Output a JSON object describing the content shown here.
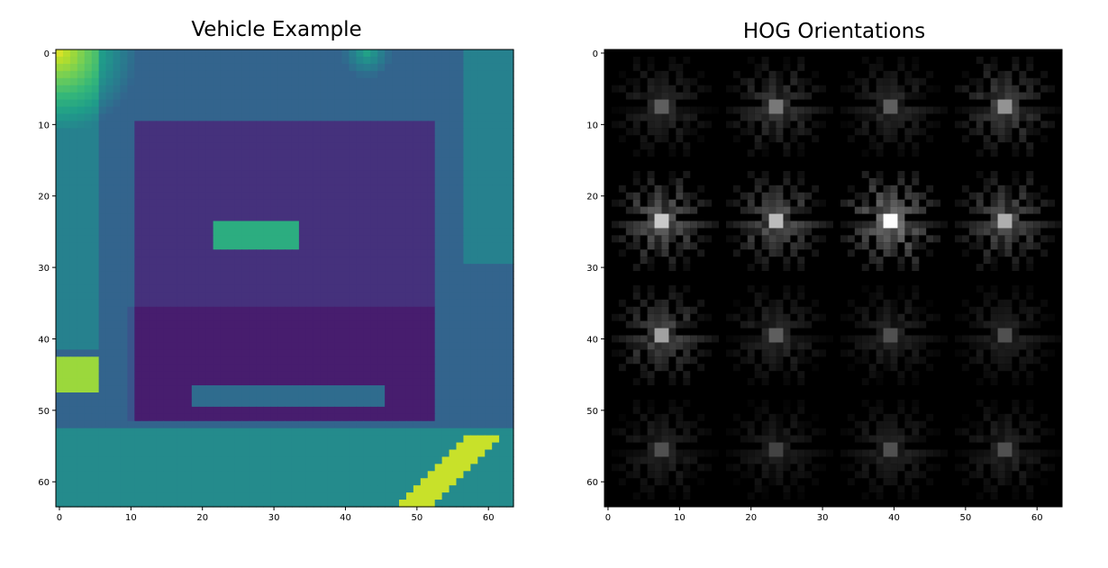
{
  "chart_data": [
    {
      "type": "heatmap",
      "title": "Vehicle Example",
      "colormap": "viridis",
      "xlim": [
        -0.5,
        63.5
      ],
      "ylim": [
        63.5,
        -0.5
      ],
      "xticks": [
        0,
        10,
        20,
        30,
        40,
        50,
        60
      ],
      "yticks": [
        0,
        10,
        20,
        30,
        40,
        50,
        60
      ],
      "xticklabels": [
        "0",
        "10",
        "20",
        "30",
        "40",
        "50",
        "60"
      ],
      "yticklabels": [
        "0",
        "10",
        "20",
        "30",
        "40",
        "50",
        "60"
      ],
      "image_size": [
        64,
        64
      ],
      "xlabel": "",
      "ylabel": ""
    },
    {
      "type": "heatmap",
      "title": "HOG Orientations",
      "colormap": "gray",
      "xlim": [
        -0.5,
        63.5
      ],
      "ylim": [
        63.5,
        -0.5
      ],
      "xticks": [
        0,
        10,
        20,
        30,
        40,
        50,
        60
      ],
      "yticks": [
        0,
        10,
        20,
        30,
        40,
        50,
        60
      ],
      "xticklabels": [
        "0",
        "10",
        "20",
        "30",
        "40",
        "50",
        "60"
      ],
      "yticklabels": [
        "0",
        "10",
        "20",
        "30",
        "40",
        "50",
        "60"
      ],
      "image_size": [
        64,
        64
      ],
      "hog_cells": [
        4,
        4
      ],
      "hog_cell_intensity": [
        [
          0.35,
          0.45,
          0.35,
          0.55
        ],
        [
          0.75,
          0.7,
          0.95,
          0.65
        ],
        [
          0.6,
          0.35,
          0.3,
          0.3
        ],
        [
          0.3,
          0.25,
          0.3,
          0.3
        ]
      ],
      "xlabel": "",
      "ylabel": ""
    }
  ]
}
